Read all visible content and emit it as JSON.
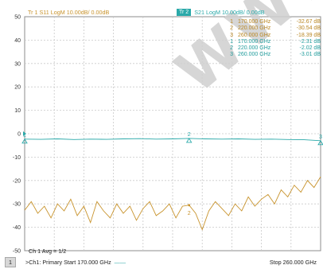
{
  "trace_headers": {
    "s11": "Tr 1  S11 LogM 10.00dB/ 0.00dB",
    "s21_badge": "Tr 2",
    "s21": "S21 LogM 10.00dB/ 0.00dB"
  },
  "marker_table": [
    {
      "num": "1",
      "freq": "170.000 GHz",
      "value": "-32.67 dB",
      "trace": "S11"
    },
    {
      "num": "2",
      "freq": "220.000 GHz",
      "value": "-30.54 dB",
      "trace": "S11"
    },
    {
      "num": "3",
      "freq": "260.000 GHz",
      "value": "-18.39 dB",
      "trace": "S11"
    },
    {
      "num": "1",
      "freq": "170.000 GHz",
      "value": "-2.31 dB",
      "trace": "S21"
    },
    {
      "num": "2",
      "freq": "220.000 GHz",
      "value": "-2.02 dB",
      "trace": "S21"
    },
    {
      "num": "3",
      "freq": "260.000 GHz",
      "value": "-3.01 dB",
      "trace": "S21"
    }
  ],
  "channel_avg": "Ch 1 Avg =    1/2",
  "status": {
    "channel_number": "1",
    "left": ">Ch1: Primary  Start  170.000 GHz",
    "stop": "Stop  260.000 GHz"
  },
  "watermark": "WWW",
  "colors": {
    "s11": "#c8932c",
    "s21": "#2aa9a9",
    "grid": "#c9c9c9",
    "frame": "#8c8c8c"
  },
  "chart_data": {
    "type": "line",
    "x_range": [
      170,
      260
    ],
    "ylim": [
      -50,
      50
    ],
    "y_ticks": [
      50,
      40,
      30,
      20,
      10,
      0,
      -10,
      -20,
      -30,
      -40,
      -50
    ],
    "grid": true,
    "series": [
      {
        "name": "S21",
        "x": [
          170,
          175,
          180,
          185,
          190,
          195,
          200,
          205,
          210,
          215,
          220,
          225,
          230,
          235,
          240,
          245,
          250,
          255,
          260
        ],
        "values": [
          -2.3,
          -2.4,
          -2.2,
          -2.5,
          -2.3,
          -2.4,
          -2.2,
          -2.1,
          -2.3,
          -2.2,
          -2.0,
          -2.2,
          -2.3,
          -2.2,
          -2.4,
          -2.3,
          -2.5,
          -2.6,
          -3.0
        ]
      },
      {
        "name": "S11",
        "x": [
          170,
          172,
          174,
          176,
          178,
          180,
          182,
          184,
          186,
          188,
          190,
          192,
          194,
          196,
          198,
          200,
          202,
          204,
          206,
          208,
          210,
          212,
          214,
          216,
          218,
          220,
          222,
          224,
          226,
          228,
          230,
          232,
          234,
          236,
          238,
          240,
          242,
          244,
          246,
          248,
          250,
          252,
          254,
          256,
          258,
          260
        ],
        "values": [
          -32.7,
          -29,
          -34,
          -31,
          -36,
          -30,
          -33,
          -28,
          -35,
          -31,
          -38,
          -29,
          -33,
          -36,
          -30,
          -34,
          -31,
          -37,
          -32,
          -29,
          -35,
          -33,
          -30,
          -36,
          -31,
          -30.5,
          -34,
          -41,
          -33,
          -29,
          -32,
          -35,
          -30,
          -33,
          -27,
          -31,
          -28,
          -26,
          -30,
          -24,
          -27,
          -22,
          -25,
          -20,
          -23,
          -18.4
        ]
      }
    ],
    "markers": [
      {
        "series": "S11",
        "label": "2",
        "x": 220,
        "y": -30.54
      },
      {
        "series": "S21",
        "label": "1",
        "x": 170,
        "y": -2.31
      },
      {
        "series": "S21",
        "label": "2",
        "x": 220,
        "y": -2.02
      },
      {
        "series": "S21",
        "label": "3",
        "x": 260,
        "y": -3.01
      }
    ]
  }
}
